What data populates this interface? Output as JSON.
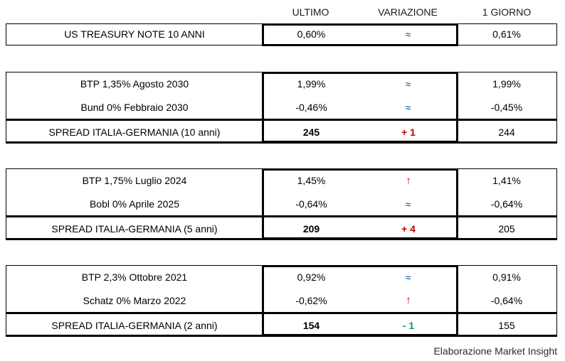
{
  "header": {
    "columns": [
      "ULTIMO",
      "VARIAZIONE",
      "1 GIORNO"
    ]
  },
  "sections": [
    {
      "rows": [
        {
          "label": "US TREASURY NOTE 10 ANNI",
          "ultimo": "0,60%",
          "variazione": "≈",
          "trend": "flat",
          "giorno": "0,61%"
        }
      ]
    },
    {
      "rows": [
        {
          "label": "BTP 1,35% Agosto 2030",
          "ultimo": "1,99%",
          "variazione": "≈",
          "trend": "flat",
          "giorno": "1,99%"
        },
        {
          "label": "Bund 0% Febbraio 2030",
          "ultimo": "-0,46%",
          "variazione": "≈",
          "trend": "flat",
          "giorno": "-0,45%"
        },
        {
          "label": "SPREAD ITALIA-GERMANIA (10 anni)",
          "ultimo": "245",
          "variazione": "+ 1",
          "trend": "up",
          "giorno": "244",
          "spread": true
        }
      ]
    },
    {
      "rows": [
        {
          "label": "BTP 1,75% Luglio 2024",
          "ultimo": "1,45%",
          "variazione": "↑",
          "trend": "up",
          "giorno": "1,41%"
        },
        {
          "label": "Bobl 0% Aprile 2025",
          "ultimo": "-0,64%",
          "variazione": "≈",
          "trend": "flat",
          "giorno": "-0,64%"
        },
        {
          "label": "SPREAD ITALIA-GERMANIA (5 anni)",
          "ultimo": "209",
          "variazione": "+ 4",
          "trend": "up",
          "giorno": "205",
          "spread": true
        }
      ]
    },
    {
      "rows": [
        {
          "label": "BTP 2,3% Ottobre 2021",
          "ultimo": "0,92%",
          "variazione": "≈",
          "trend": "flat",
          "giorno": "0,91%"
        },
        {
          "label": "Schatz 0% Marzo 2022",
          "ultimo": "-0,62%",
          "variazione": "↑",
          "trend": "up",
          "giorno": "-0,64%"
        },
        {
          "label": "SPREAD ITALIA-GERMANIA (2 anni)",
          "ultimo": "154",
          "variazione": "- 1",
          "trend": "down",
          "giorno": "155",
          "spread": true
        }
      ]
    }
  ],
  "footer": {
    "credit": "Elaborazione Market Insight"
  },
  "colors": {
    "trend_flat": "#2E75B6",
    "trend_up": "#C00000",
    "trend_down": "#00A050",
    "border": "#000000",
    "text": "#000000"
  }
}
